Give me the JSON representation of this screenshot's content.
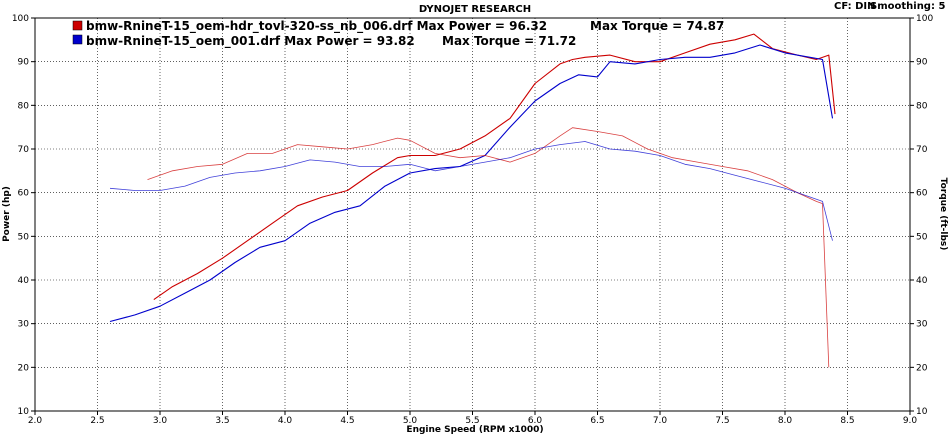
{
  "header": {
    "title": "DYNOJET RESEARCH",
    "cf": "CF: DIN",
    "smoothing": "Smoothing: 5"
  },
  "chart_data": {
    "type": "line",
    "xlabel": "Engine Speed (RPM x1000)",
    "ylabel_left": "Power (hp)",
    "ylabel_right": "Torque (ft-lbs)",
    "xlim": [
      2.0,
      9.0
    ],
    "ylim": [
      10,
      100
    ],
    "grid": true,
    "x_ticks": [
      "2.0",
      "2.5",
      "3.0",
      "3.5",
      "4.0",
      "4.5",
      "5.0",
      "5.5",
      "6.0",
      "6.5",
      "7.0",
      "7.5",
      "8.0",
      "8.5",
      "9.0"
    ],
    "y_ticks": [
      "10",
      "20",
      "30",
      "40",
      "50",
      "60",
      "70",
      "80",
      "90",
      "100"
    ],
    "legend": [
      {
        "label": "bmw-RnineT-15_oem-hdr_tovl-320-ss_nb_006.drf Max Power = 96.32",
        "torque": "Max Torque = 74.87",
        "color": "#cc0000"
      },
      {
        "label": "bmw-RnineT-15_oem_001.drf Max Power = 93.82",
        "torque": "Max Torque = 71.72",
        "color": "#0000cc"
      }
    ],
    "series": [
      {
        "name": "bmw-RnineT-15_oem-hdr_tovl-320-ss_nb_006.drf",
        "quantity": "Power",
        "color": "#cc0000",
        "x": [
          2.95,
          3.1,
          3.3,
          3.5,
          3.7,
          3.9,
          4.1,
          4.3,
          4.5,
          4.7,
          4.9,
          5.0,
          5.2,
          5.4,
          5.6,
          5.8,
          6.0,
          6.2,
          6.3,
          6.4,
          6.6,
          6.8,
          7.0,
          7.2,
          7.4,
          7.6,
          7.75,
          7.9,
          8.1,
          8.25,
          8.35,
          8.4
        ],
        "y": [
          35.5,
          38.5,
          41.5,
          45.0,
          49.0,
          53.0,
          57.0,
          59.0,
          60.5,
          64.5,
          68.0,
          68.5,
          68.5,
          70.0,
          73.0,
          77.0,
          85.0,
          89.5,
          90.5,
          91.0,
          91.5,
          90.0,
          90.0,
          92.0,
          94.0,
          95.0,
          96.32,
          93.0,
          91.5,
          90.5,
          91.5,
          78.0
        ]
      },
      {
        "name": "bmw-RnineT-15_oem_001.drf",
        "quantity": "Power",
        "color": "#0000cc",
        "x": [
          2.6,
          2.8,
          3.0,
          3.2,
          3.4,
          3.6,
          3.8,
          4.0,
          4.2,
          4.4,
          4.6,
          4.8,
          5.0,
          5.2,
          5.4,
          5.6,
          5.8,
          6.0,
          6.2,
          6.35,
          6.5,
          6.6,
          6.8,
          7.0,
          7.2,
          7.4,
          7.6,
          7.8,
          8.0,
          8.2,
          8.3,
          8.38
        ],
        "y": [
          30.5,
          32.0,
          34.0,
          37.0,
          40.0,
          44.0,
          47.5,
          49.0,
          53.0,
          55.5,
          57.0,
          61.5,
          64.5,
          65.5,
          66.0,
          68.5,
          75.0,
          81.0,
          85.0,
          87.0,
          86.5,
          90.0,
          89.5,
          90.5,
          91.0,
          91.0,
          92.0,
          93.82,
          92.0,
          91.0,
          90.5,
          77.0
        ]
      },
      {
        "name": "bmw-RnineT-15_oem-hdr_tovl-320-ss_nb_006.drf",
        "quantity": "Torque",
        "color": "#cc0000",
        "x": [
          2.9,
          3.1,
          3.3,
          3.5,
          3.7,
          3.9,
          4.1,
          4.3,
          4.5,
          4.7,
          4.9,
          5.0,
          5.2,
          5.4,
          5.6,
          5.8,
          6.0,
          6.2,
          6.3,
          6.5,
          6.7,
          6.9,
          7.1,
          7.3,
          7.5,
          7.7,
          7.9,
          8.1,
          8.25,
          8.3,
          8.35
        ],
        "y": [
          63.0,
          65.0,
          66.0,
          66.5,
          69.0,
          69.0,
          71.0,
          70.5,
          70.0,
          71.0,
          72.5,
          72.0,
          69.0,
          68.0,
          68.5,
          67.0,
          69.0,
          73.0,
          74.87,
          74.0,
          73.0,
          70.0,
          68.0,
          67.0,
          66.0,
          65.0,
          63.0,
          60.0,
          58.0,
          57.5,
          20.0
        ]
      },
      {
        "name": "bmw-RnineT-15_oem_001.drf",
        "quantity": "Torque",
        "color": "#0000cc",
        "x": [
          2.6,
          2.8,
          3.0,
          3.2,
          3.4,
          3.6,
          3.8,
          4.0,
          4.2,
          4.4,
          4.6,
          4.8,
          5.0,
          5.2,
          5.4,
          5.6,
          5.8,
          6.0,
          6.2,
          6.4,
          6.6,
          6.8,
          7.0,
          7.2,
          7.4,
          7.6,
          7.8,
          8.0,
          8.2,
          8.3,
          8.38
        ],
        "y": [
          61.0,
          60.5,
          60.5,
          61.5,
          63.5,
          64.5,
          65.0,
          66.0,
          67.5,
          67.0,
          66.0,
          66.0,
          66.5,
          65.0,
          66.0,
          67.0,
          68.0,
          70.0,
          71.0,
          71.72,
          70.0,
          69.5,
          68.5,
          66.5,
          65.5,
          64.0,
          62.5,
          61.0,
          59.0,
          58.0,
          49.0
        ]
      }
    ]
  }
}
